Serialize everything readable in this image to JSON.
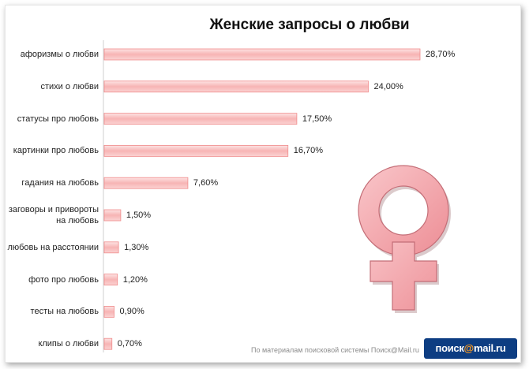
{
  "chart_data": {
    "type": "bar",
    "orientation": "horizontal",
    "title": "Женские запросы о любви",
    "categories": [
      "афоризмы о любви",
      "стихи о любви",
      "статусы про любовь",
      "картинки про любовь",
      "гадания на любовь",
      "заговоры и привороты на любовь",
      "любовь на расстоянии",
      "фото про любовь",
      "тесты на любовь",
      "клипы о любви"
    ],
    "values": [
      28.7,
      24.0,
      17.5,
      16.7,
      7.6,
      1.5,
      1.3,
      1.2,
      0.9,
      0.7
    ],
    "value_labels": [
      "28,70%",
      "24,00%",
      "17,50%",
      "16,70%",
      "7,60%",
      "1,50%",
      "1,30%",
      "1,20%",
      "0,90%",
      "0,70%"
    ],
    "xlim": [
      0,
      28.7
    ],
    "bar_color": "#f9c2c2",
    "bar_edge_color": "#f08c8c",
    "grid": false,
    "legend": "none"
  },
  "footer": {
    "source": "По материалам поисковой системы Поиск@Mail.ru",
    "logo_prefix": "поиск",
    "logo_at": "@",
    "logo_suffix": "mail.ru"
  },
  "decor": {
    "symbol_name": "female-venus-symbol",
    "symbol_color": "#f4a8ae"
  }
}
